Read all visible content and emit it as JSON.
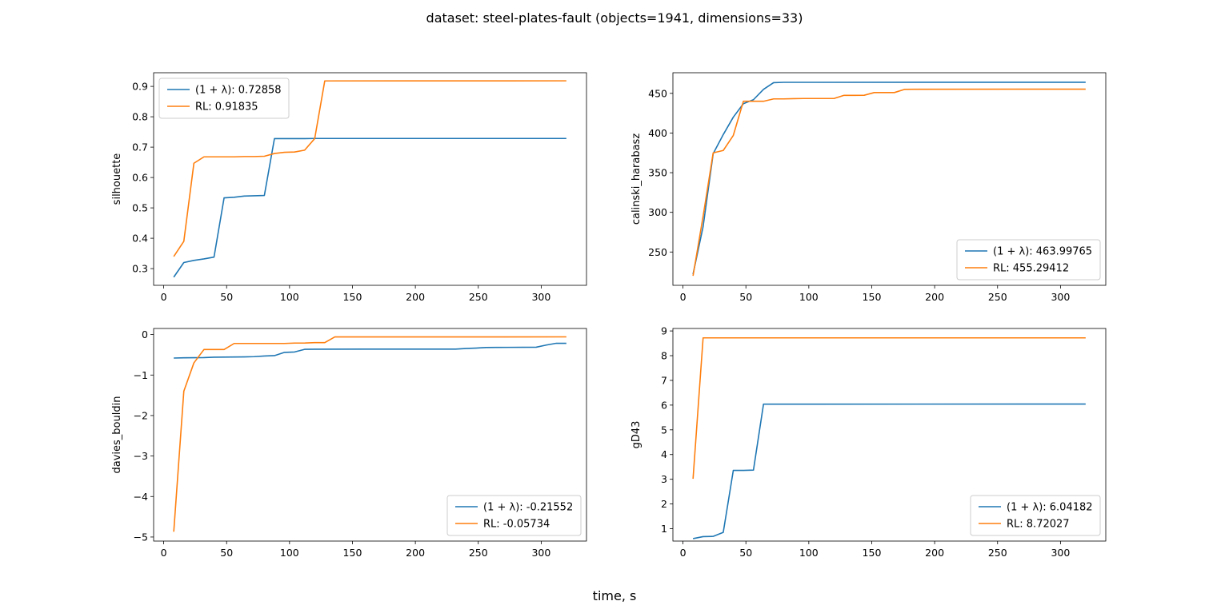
{
  "figure": {
    "title": "dataset: steel-plates-fault (objects=1941, dimensions=33)",
    "xlabel": "time, s"
  },
  "colors": {
    "series_a": "#1f77b4",
    "series_b": "#ff7f0e"
  },
  "chart_data": [
    {
      "type": "line",
      "ylabel": "silhouette",
      "xlim": [
        -8,
        336
      ],
      "ylim": [
        0.245,
        0.945
      ],
      "xticks": [
        0,
        50,
        100,
        150,
        200,
        250,
        300
      ],
      "yticks": [
        0.3,
        0.4,
        0.5,
        0.6,
        0.7,
        0.8,
        0.9
      ],
      "tick_decimals": 1,
      "legend": "upper-left",
      "series": [
        {
          "name": "(1 + λ): 0.72858",
          "x": [
            8,
            16,
            24,
            32,
            40,
            48,
            56,
            64,
            72,
            80,
            88,
            96,
            104,
            112,
            120,
            320
          ],
          "y": [
            0.272,
            0.32,
            0.327,
            0.332,
            0.338,
            0.533,
            0.535,
            0.539,
            0.54,
            0.541,
            0.728,
            0.728,
            0.728,
            0.728,
            0.72858,
            0.72858
          ]
        },
        {
          "name": "RL: 0.91835",
          "x": [
            8,
            16,
            24,
            32,
            40,
            48,
            56,
            64,
            72,
            80,
            88,
            96,
            104,
            112,
            120,
            128,
            320
          ],
          "y": [
            0.34,
            0.39,
            0.647,
            0.668,
            0.668,
            0.668,
            0.668,
            0.669,
            0.669,
            0.67,
            0.679,
            0.683,
            0.684,
            0.69,
            0.728,
            0.918,
            0.91835
          ]
        }
      ]
    },
    {
      "type": "line",
      "ylabel": "calinski_harabasz",
      "xlim": [
        -8,
        336
      ],
      "ylim": [
        208,
        476
      ],
      "xticks": [
        0,
        50,
        100,
        150,
        200,
        250,
        300
      ],
      "yticks": [
        250,
        300,
        350,
        400,
        450
      ],
      "tick_decimals": 0,
      "legend": "lower-right",
      "series": [
        {
          "name": "(1 + λ): 463.99765",
          "x": [
            8,
            16,
            24,
            32,
            40,
            48,
            56,
            64,
            72,
            80,
            320
          ],
          "y": [
            222,
            282,
            374,
            398,
            420,
            437,
            442,
            455,
            463.5,
            463.9,
            463.99765
          ]
        },
        {
          "name": "RL: 455.29412",
          "x": [
            8,
            16,
            24,
            32,
            40,
            48,
            56,
            64,
            72,
            80,
            88,
            96,
            104,
            112,
            120,
            128,
            136,
            144,
            152,
            160,
            168,
            176,
            184,
            320
          ],
          "y": [
            220,
            295,
            375,
            378,
            397,
            440,
            440,
            440,
            443,
            443,
            443.3,
            443.5,
            443.5,
            443.5,
            443.5,
            447.5,
            447.5,
            447.6,
            451,
            451,
            451,
            455,
            455.2,
            455.29412
          ]
        }
      ]
    },
    {
      "type": "line",
      "ylabel": "davies_bouldin",
      "xlim": [
        -8,
        336
      ],
      "ylim": [
        -5.1,
        0.15
      ],
      "xticks": [
        0,
        50,
        100,
        150,
        200,
        250,
        300
      ],
      "yticks": [
        -5,
        -4,
        -3,
        -2,
        -1,
        0
      ],
      "tick_decimals": 0,
      "legend": "lower-right",
      "series": [
        {
          "name": "(1 + λ): -0.21552",
          "x": [
            8,
            16,
            24,
            32,
            40,
            48,
            56,
            64,
            72,
            80,
            88,
            96,
            104,
            112,
            120,
            160,
            200,
            232,
            240,
            248,
            256,
            264,
            296,
            304,
            312,
            320
          ],
          "y": [
            -0.58,
            -0.575,
            -0.572,
            -0.57,
            -0.56,
            -0.557,
            -0.554,
            -0.552,
            -0.546,
            -0.53,
            -0.52,
            -0.44,
            -0.43,
            -0.365,
            -0.362,
            -0.36,
            -0.36,
            -0.36,
            -0.345,
            -0.335,
            -0.32,
            -0.318,
            -0.312,
            -0.26,
            -0.215,
            -0.21552
          ]
        },
        {
          "name": "RL: -0.05734",
          "x": [
            8,
            16,
            24,
            32,
            40,
            48,
            56,
            64,
            72,
            80,
            88,
            96,
            104,
            112,
            120,
            128,
            136,
            320
          ],
          "y": [
            -4.87,
            -1.4,
            -0.7,
            -0.37,
            -0.37,
            -0.37,
            -0.22,
            -0.22,
            -0.22,
            -0.22,
            -0.22,
            -0.22,
            -0.21,
            -0.21,
            -0.2,
            -0.2,
            -0.058,
            -0.05734
          ]
        }
      ]
    },
    {
      "type": "line",
      "ylabel": "gD43",
      "xlim": [
        -8,
        336
      ],
      "ylim": [
        0.5,
        9.1
      ],
      "xticks": [
        0,
        50,
        100,
        150,
        200,
        250,
        300
      ],
      "yticks": [
        1,
        2,
        3,
        4,
        5,
        6,
        7,
        8,
        9
      ],
      "tick_decimals": 0,
      "legend": "lower-right",
      "series": [
        {
          "name": "(1 + λ): 6.04182",
          "x": [
            8,
            16,
            24,
            32,
            40,
            48,
            56,
            64,
            72,
            80,
            320
          ],
          "y": [
            0.6,
            0.68,
            0.69,
            0.85,
            3.36,
            3.36,
            3.37,
            6.04,
            6.04,
            6.04,
            6.04182
          ]
        },
        {
          "name": "RL: 8.72027",
          "x": [
            8,
            16,
            24,
            320
          ],
          "y": [
            3.02,
            8.72,
            8.72,
            8.72027
          ]
        }
      ]
    }
  ]
}
